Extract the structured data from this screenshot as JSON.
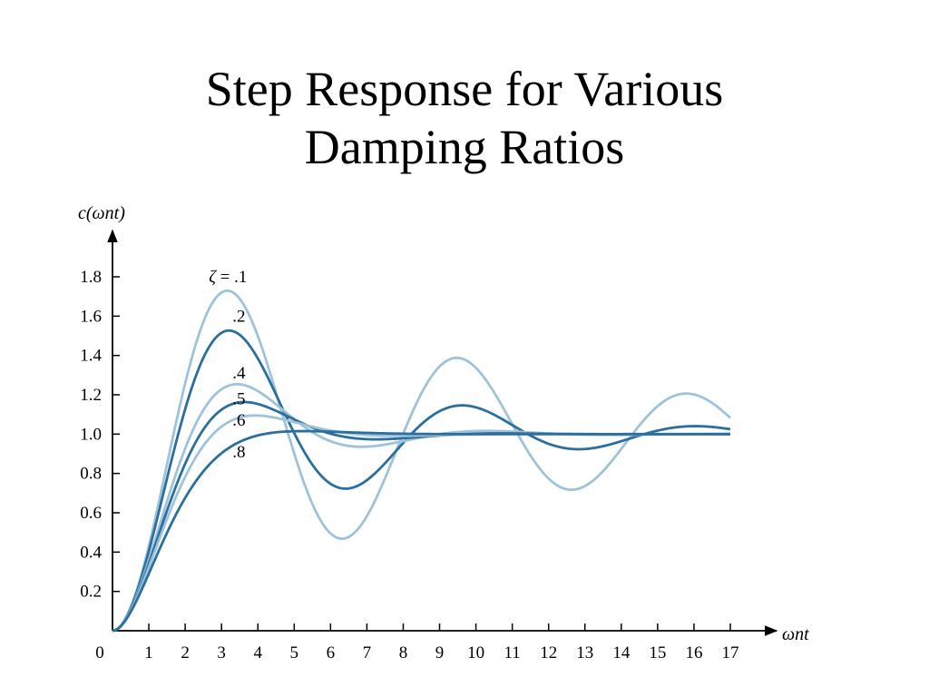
{
  "title": {
    "line1": "Step Response for Various",
    "line2": "Damping Ratios"
  },
  "chart_data": {
    "type": "line",
    "title": "Step Response for Various Damping Ratios",
    "xlabel": "ωnt",
    "ylabel": "c(ωnt)",
    "xlim": [
      0,
      17
    ],
    "ylim": [
      0,
      1.9
    ],
    "x_ticks": [
      "0",
      "1",
      "2",
      "3",
      "4",
      "5",
      "6",
      "7",
      "8",
      "9",
      "10",
      "11",
      "12",
      "13",
      "14",
      "15",
      "16",
      "17"
    ],
    "y_ticks": [
      "0.2",
      "0.4",
      "0.6",
      "0.8",
      "1.0",
      "1.2",
      "1.4",
      "1.6",
      "1.8"
    ],
    "grid": false,
    "legend": "none (curves labeled inline)",
    "series": [
      {
        "name": "ζ = .1",
        "zeta": 0.1,
        "color": "#9ec3da",
        "label_x": 3.3,
        "label_y": 1.8
      },
      {
        "name": ".2",
        "zeta": 0.2,
        "color": "#2a6f9e",
        "label_x": 3.3,
        "label_y": 1.6
      },
      {
        "name": ".4",
        "zeta": 0.4,
        "color": "#9ec3da",
        "label_x": 3.3,
        "label_y": 1.31
      },
      {
        "name": ".5",
        "zeta": 0.5,
        "color": "#2a6f9e",
        "label_x": 3.3,
        "label_y": 1.18
      },
      {
        "name": ".6",
        "zeta": 0.6,
        "color": "#9ec3da",
        "label_x": 3.3,
        "label_y": 1.07
      },
      {
        "name": ".8",
        "zeta": 0.8,
        "color": "#2a6f9e",
        "label_x": 3.3,
        "label_y": 0.91
      }
    ]
  }
}
